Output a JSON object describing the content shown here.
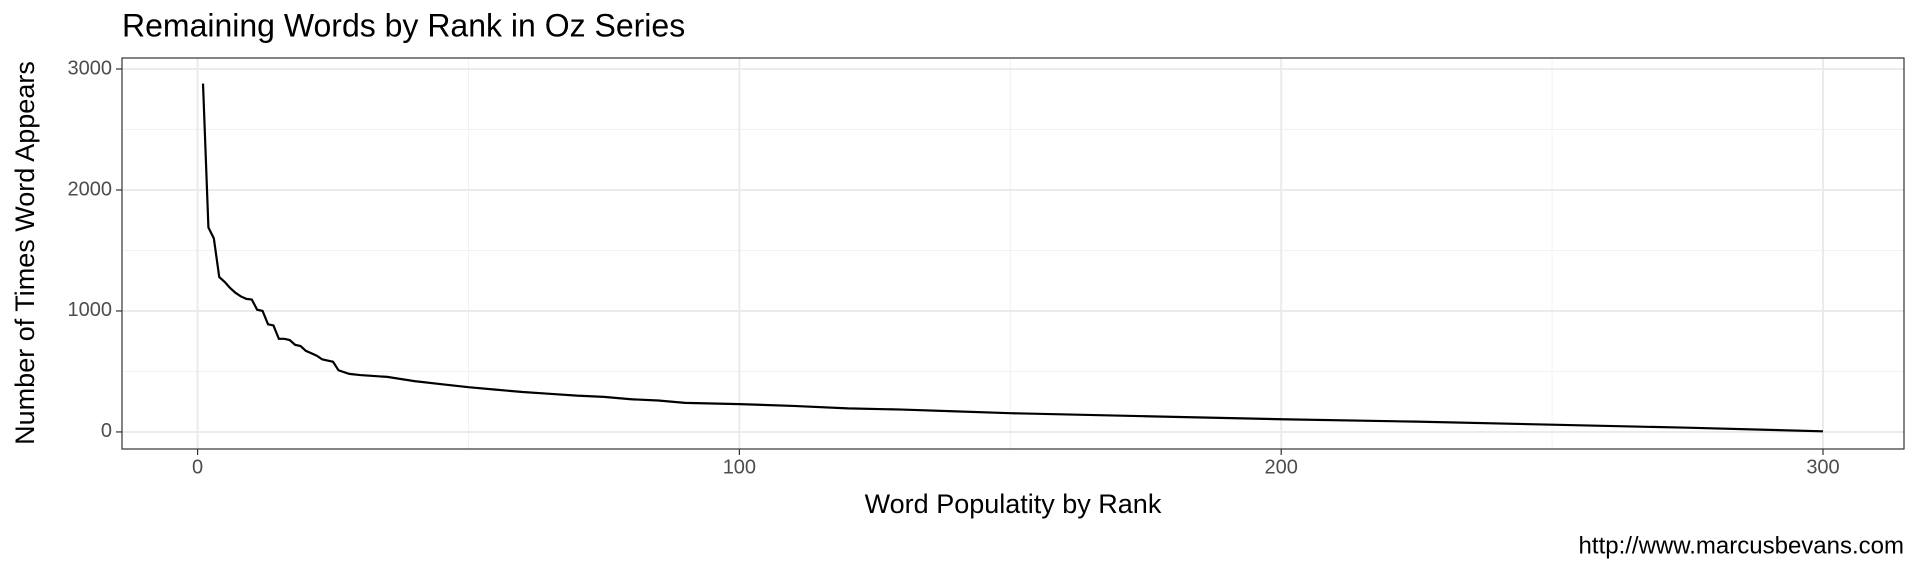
{
  "chart_data": {
    "type": "line",
    "title": "Remaining Words by Rank in Oz Series",
    "x_label": "Word Populatity by Rank",
    "y_label": "Number of Times Word Appears",
    "caption": "http://www.marcusbevans.com",
    "x": [
      1,
      2,
      3,
      4,
      5,
      6,
      7,
      8,
      9,
      10,
      11,
      12,
      13,
      14,
      15,
      16,
      17,
      18,
      19,
      20,
      21,
      22,
      23,
      24,
      25,
      26,
      28,
      30,
      35,
      40,
      45,
      50,
      55,
      60,
      65,
      70,
      75,
      80,
      85,
      90,
      100,
      110,
      120,
      130,
      140,
      150,
      175,
      200,
      225,
      250,
      275,
      300
    ],
    "values": [
      2880,
      1690,
      1600,
      1280,
      1240,
      1190,
      1150,
      1120,
      1100,
      1095,
      1010,
      1000,
      890,
      880,
      770,
      770,
      760,
      720,
      710,
      670,
      650,
      630,
      600,
      590,
      580,
      510,
      480,
      470,
      455,
      420,
      395,
      370,
      350,
      330,
      315,
      300,
      290,
      270,
      260,
      240,
      230,
      215,
      195,
      185,
      170,
      155,
      130,
      105,
      85,
      60,
      35,
      5
    ],
    "color": "#000000",
    "xlim": [
      -13.95,
      314.95
    ],
    "ylim": [
      -141,
      3091
    ],
    "xticks": [
      0,
      100,
      200,
      300
    ],
    "yticks": [
      0,
      1000,
      2000,
      3000
    ],
    "x_minor": [
      50,
      150,
      250
    ],
    "y_minor": [
      500,
      1500,
      2500
    ],
    "grid": true
  }
}
